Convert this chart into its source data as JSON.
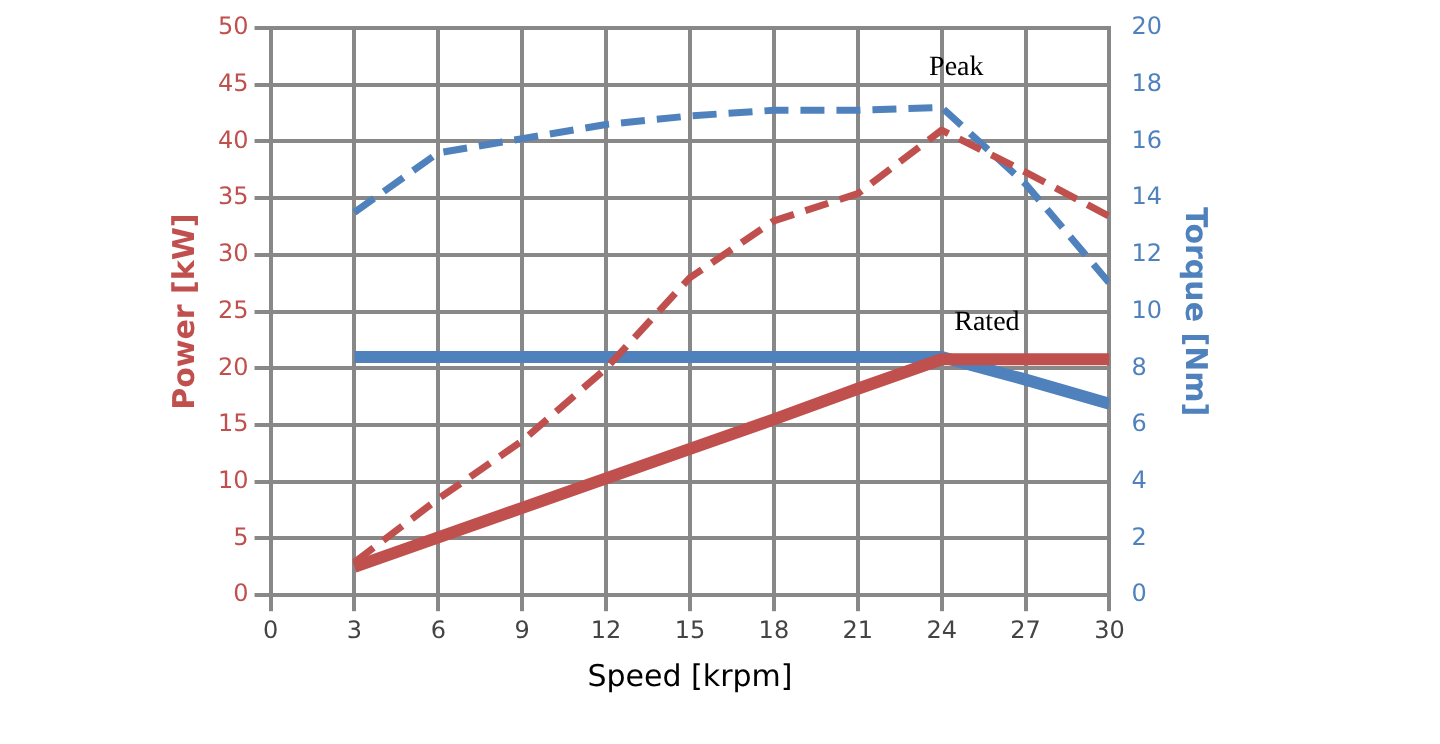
{
  "chart_data": {
    "type": "line",
    "xlabel": "Speed [krpm]",
    "ylabel": "Power [kW]",
    "y2label": "Torque [Nm]",
    "x": [
      3,
      6,
      9,
      12,
      15,
      18,
      21,
      24,
      27,
      30
    ],
    "xlim": [
      0,
      30
    ],
    "xticks": [
      0,
      3,
      6,
      9,
      12,
      15,
      18,
      21,
      24,
      27,
      30
    ],
    "ylim": [
      0,
      50
    ],
    "yticks": [
      0,
      5,
      10,
      15,
      20,
      25,
      30,
      35,
      40,
      45,
      50
    ],
    "y2lim": [
      0,
      20
    ],
    "y2ticks": [
      0,
      2,
      4,
      6,
      8,
      10,
      12,
      14,
      16,
      18,
      20
    ],
    "grid": true,
    "marker": "none",
    "series": [
      {
        "color": "#c0504d",
        "axis": "y",
        "line_style": "dashed",
        "values": [
          2.9,
          8.5,
          13.6,
          20,
          28,
          33,
          35.4,
          41,
          37.3,
          33.4
        ]
      },
      {
        "color": "#4f81bd",
        "axis": "y2",
        "line_style": "dashed",
        "values": [
          13.5,
          15.6,
          16.1,
          16.6,
          16.9,
          17.1,
          17.1,
          17.2,
          14.5,
          11
        ]
      },
      {
        "color": "#c0504d",
        "axis": "y",
        "line_style": "solid",
        "values": [
          2.5,
          5.1,
          7.7,
          10.3,
          12.9,
          15.5,
          18.2,
          20.8,
          20.8,
          20.8
        ]
      },
      {
        "color": "#4f81bd",
        "axis": "y2",
        "line_style": "solid",
        "values": [
          8.4,
          8.4,
          8.4,
          8.4,
          8.4,
          8.4,
          8.4,
          8.4,
          7.6,
          6.75
        ]
      }
    ],
    "annotations": [
      "Peak",
      "Rated"
    ]
  }
}
